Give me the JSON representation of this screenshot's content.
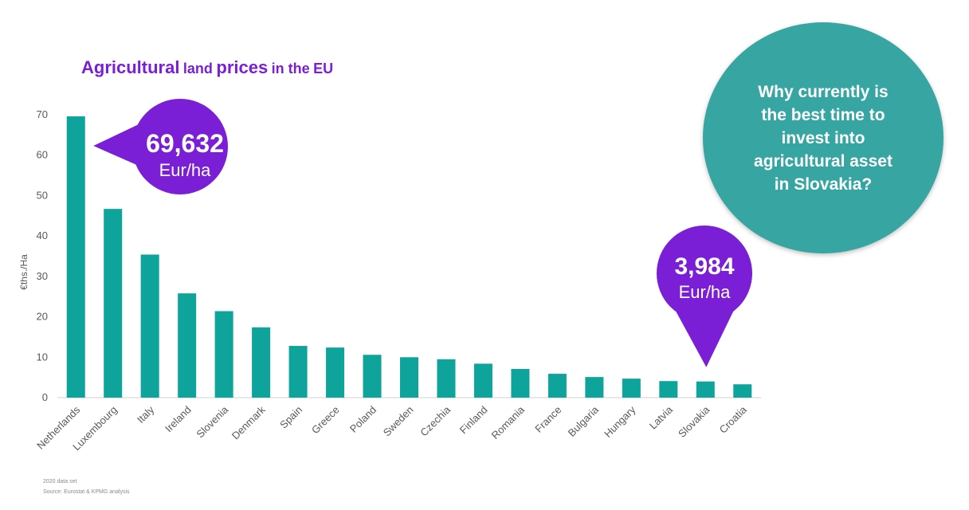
{
  "title": {
    "parts": [
      "Agricultural",
      "land",
      "prices",
      "in the",
      "EU"
    ]
  },
  "chart_data": {
    "type": "bar",
    "categories": [
      "Netherlands",
      "Luxembourg",
      "Italy",
      "Ireland",
      "Slovenia",
      "Denmark",
      "Spain",
      "Greece",
      "Poland",
      "Sweden",
      "Czechia",
      "Finland",
      "Romania",
      "France",
      "Bulgaria",
      "Hungary",
      "Latvia",
      "Slovakia",
      "Croatia"
    ],
    "values": [
      69.6,
      46.7,
      35.4,
      25.8,
      21.4,
      17.4,
      12.8,
      12.4,
      10.6,
      10.0,
      9.5,
      8.4,
      7.1,
      5.9,
      5.1,
      4.7,
      4.1,
      4.0,
      3.3
    ],
    "ylabel": "€ths./Ha",
    "ylim": [
      0,
      70
    ],
    "yticks": [
      0,
      10,
      20,
      30,
      40,
      50,
      60,
      70
    ],
    "bar_color": "#0ea39b",
    "grid": false
  },
  "callouts": [
    {
      "value": "69,632",
      "unit": "Eur/ha",
      "category": "Netherlands"
    },
    {
      "value": "3,984",
      "unit": "Eur/ha",
      "category": "Slovakia"
    }
  ],
  "callout_color": "#7a1fd6",
  "circle": {
    "lines": [
      "Why currently is",
      "the best time to",
      "invest into",
      "agricultural asset",
      "in Slovakia?"
    ],
    "color": "#37a6a3"
  },
  "footnotes": [
    "2020 data set",
    "Source: Eurostat & KPMG analysis"
  ]
}
